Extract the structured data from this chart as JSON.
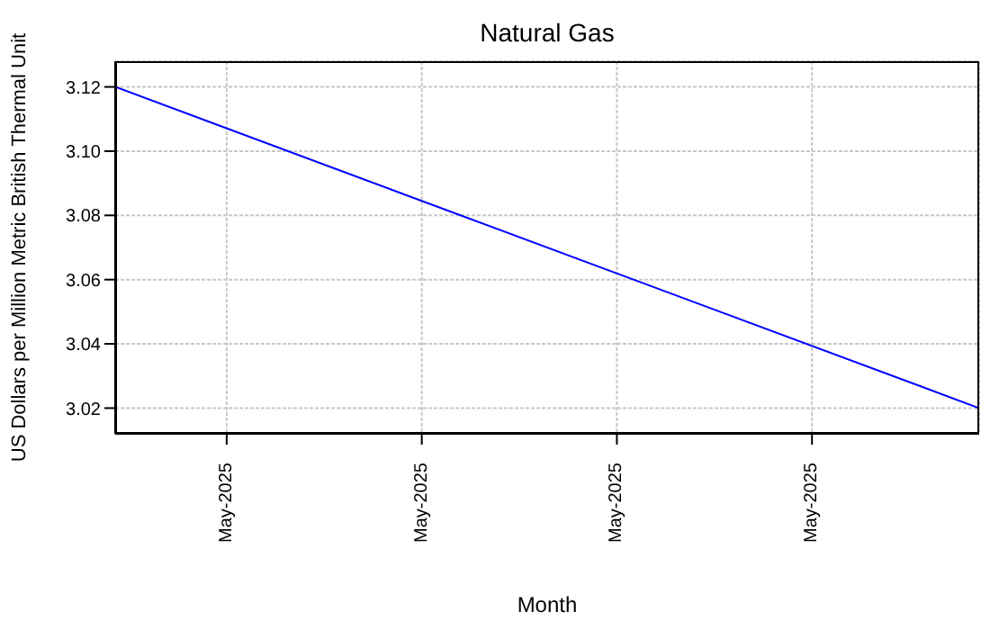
{
  "chart_data": {
    "type": "line",
    "title": "Natural Gas",
    "xlabel": "Month",
    "ylabel": "US Dollars per Million Metric British Thermal Unit",
    "x": [
      "2025-05-01",
      "2025-06-01"
    ],
    "series": [
      {
        "color": "#0000ff",
        "values": [
          3.12,
          3.02
        ]
      }
    ],
    "xlim": [
      "2025-05-01",
      "2025-06-01"
    ],
    "xticks": [
      {
        "value": "2025-05-05",
        "label": "May-2025"
      },
      {
        "value": "2025-05-12",
        "label": "May-2025"
      },
      {
        "value": "2025-05-19",
        "label": "May-2025"
      },
      {
        "value": "2025-05-26",
        "label": "May-2025"
      }
    ],
    "ylim": [
      3.012,
      3.128
    ],
    "yticks": [
      3.02,
      3.04,
      3.06,
      3.08,
      {
        "value": 3.1,
        "label": "3.10"
      },
      3.12
    ],
    "grid": true,
    "marker": "none",
    "line_style": "solid"
  }
}
